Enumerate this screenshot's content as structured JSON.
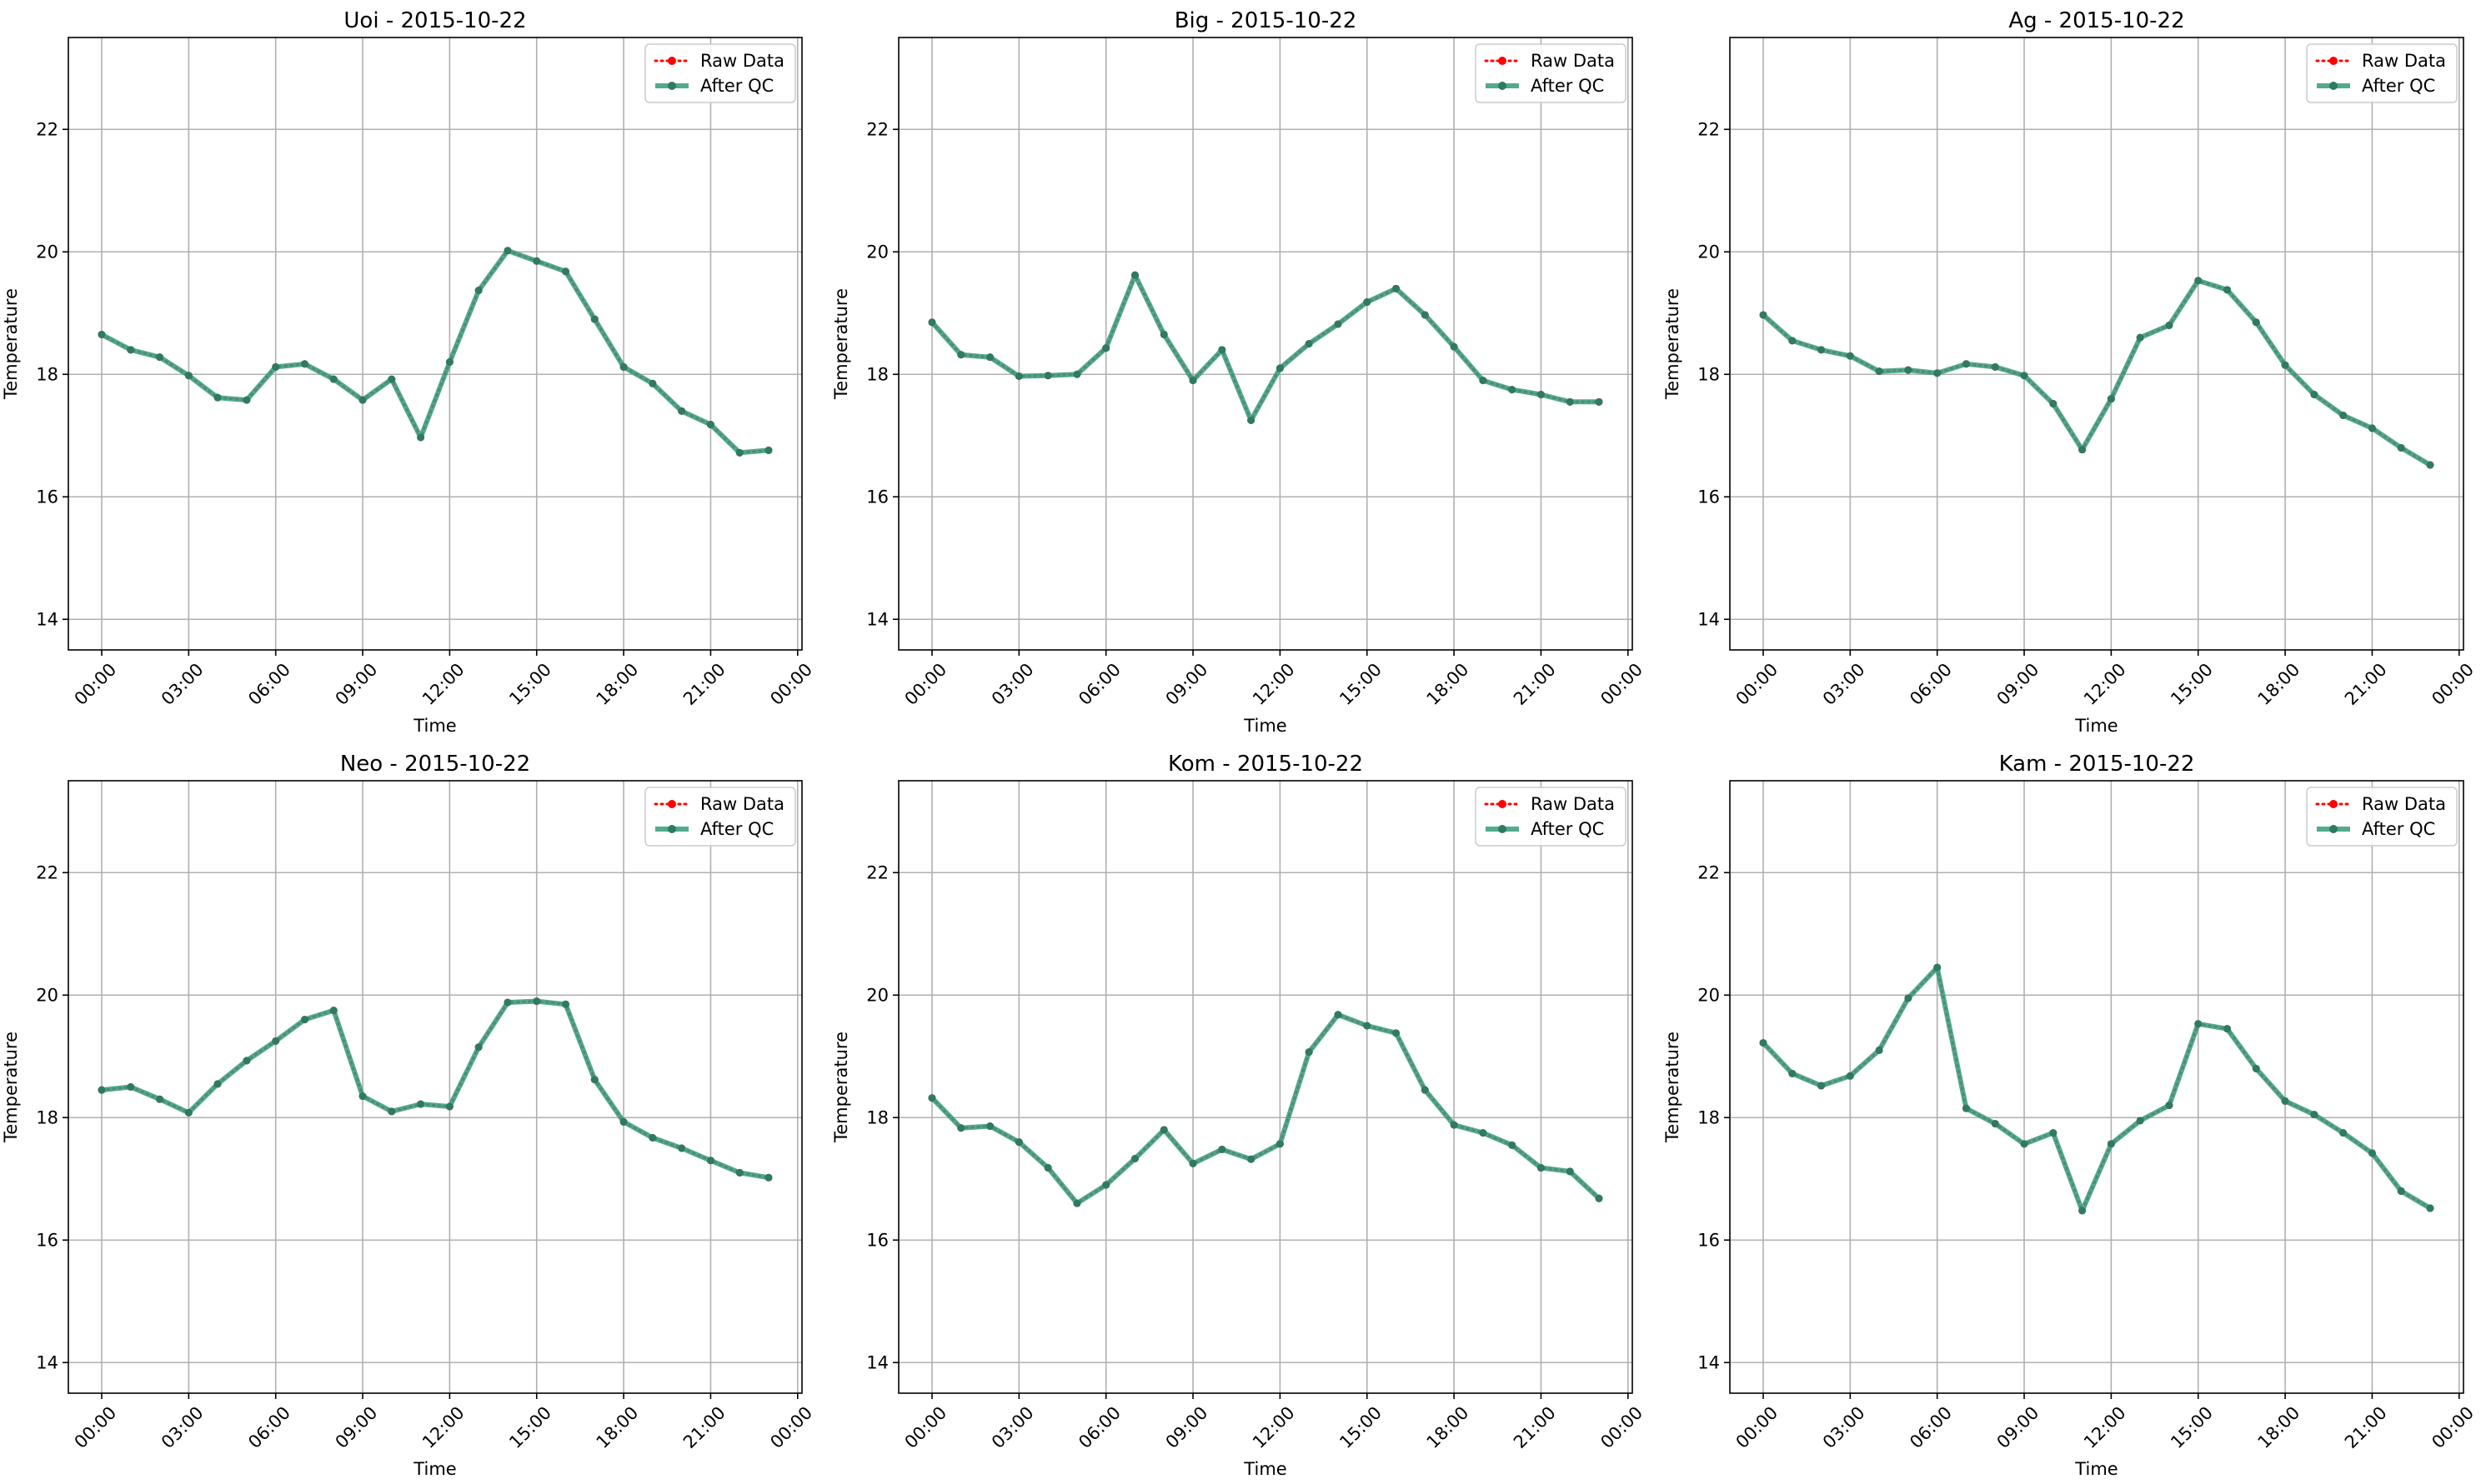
{
  "colors": {
    "raw": "#ff0000",
    "qc": "#3a9e80",
    "qc_marker": "#2e7a63",
    "grid": "#b0b0b0",
    "axis": "#000000"
  },
  "chart_data": [
    {
      "type": "line",
      "title": "Uoi - 2015-10-22",
      "xlabel": "Time",
      "ylabel": "Temperature",
      "x_unit": "hour",
      "x_tick_values": [
        0,
        3,
        6,
        9,
        12,
        15,
        18,
        21,
        24
      ],
      "x_tick_labels": [
        "00:00",
        "03:00",
        "06:00",
        "09:00",
        "12:00",
        "15:00",
        "18:00",
        "21:00",
        "00:00"
      ],
      "y_ticks": [
        14,
        16,
        18,
        20,
        22
      ],
      "ylim": [
        13.5,
        23.5
      ],
      "xlim": [
        -1.15,
        24.15
      ],
      "grid": true,
      "legend": {
        "placement": "top-right",
        "entries": [
          "Raw Data",
          "After QC"
        ]
      },
      "x": [
        0,
        1,
        2,
        3,
        4,
        5,
        6,
        7,
        8,
        9,
        10,
        11,
        12,
        13,
        14,
        15,
        16,
        17,
        18,
        19,
        20,
        21,
        22,
        23
      ],
      "series": [
        {
          "name": "Raw Data",
          "style": "dotted-red-markers",
          "values": [
            18.65,
            18.4,
            18.28,
            17.98,
            17.62,
            17.58,
            18.12,
            18.17,
            17.92,
            17.58,
            17.92,
            16.97,
            18.2,
            19.37,
            20.02,
            19.85,
            19.68,
            18.9,
            18.12,
            17.85,
            17.4,
            17.18,
            16.72,
            16.76
          ]
        },
        {
          "name": "After QC",
          "style": "solid-green-markers",
          "values": [
            18.65,
            18.4,
            18.28,
            17.98,
            17.62,
            17.58,
            18.12,
            18.17,
            17.92,
            17.58,
            17.92,
            16.97,
            18.2,
            19.37,
            20.02,
            19.85,
            19.68,
            18.9,
            18.12,
            17.85,
            17.4,
            17.18,
            16.72,
            16.76
          ]
        }
      ]
    },
    {
      "type": "line",
      "title": "Big - 2015-10-22",
      "xlabel": "Time",
      "ylabel": "Temperature",
      "x_unit": "hour",
      "x_tick_values": [
        0,
        3,
        6,
        9,
        12,
        15,
        18,
        21,
        24
      ],
      "x_tick_labels": [
        "00:00",
        "03:00",
        "06:00",
        "09:00",
        "12:00",
        "15:00",
        "18:00",
        "21:00",
        "00:00"
      ],
      "y_ticks": [
        14,
        16,
        18,
        20,
        22
      ],
      "ylim": [
        13.5,
        23.5
      ],
      "xlim": [
        -1.15,
        24.15
      ],
      "grid": true,
      "legend": {
        "placement": "top-right",
        "entries": [
          "Raw Data",
          "After QC"
        ]
      },
      "x": [
        0,
        1,
        2,
        3,
        4,
        5,
        6,
        7,
        8,
        9,
        10,
        11,
        12,
        13,
        14,
        15,
        16,
        17,
        18,
        19,
        20,
        21,
        22,
        23
      ],
      "series": [
        {
          "name": "Raw Data",
          "style": "dotted-red-markers",
          "values": [
            18.85,
            18.32,
            18.28,
            17.97,
            17.98,
            18.0,
            18.43,
            19.62,
            18.65,
            17.9,
            18.4,
            17.25,
            18.1,
            18.5,
            18.82,
            19.18,
            19.4,
            18.97,
            18.45,
            17.9,
            17.75,
            17.67,
            17.55,
            17.55
          ]
        },
        {
          "name": "After QC",
          "style": "solid-green-markers",
          "values": [
            18.85,
            18.32,
            18.28,
            17.97,
            17.98,
            18.0,
            18.43,
            19.62,
            18.65,
            17.9,
            18.4,
            17.25,
            18.1,
            18.5,
            18.82,
            19.18,
            19.4,
            18.97,
            18.45,
            17.9,
            17.75,
            17.67,
            17.55,
            17.55
          ]
        }
      ]
    },
    {
      "type": "line",
      "title": "Ag - 2015-10-22",
      "xlabel": "Time",
      "ylabel": "Temperature",
      "x_unit": "hour",
      "x_tick_values": [
        0,
        3,
        6,
        9,
        12,
        15,
        18,
        21,
        24
      ],
      "x_tick_labels": [
        "00:00",
        "03:00",
        "06:00",
        "09:00",
        "12:00",
        "15:00",
        "18:00",
        "21:00",
        "00:00"
      ],
      "y_ticks": [
        14,
        16,
        18,
        20,
        22
      ],
      "ylim": [
        13.5,
        23.5
      ],
      "xlim": [
        -1.15,
        24.15
      ],
      "grid": true,
      "legend": {
        "placement": "top-right",
        "entries": [
          "Raw Data",
          "After QC"
        ]
      },
      "x": [
        0,
        1,
        2,
        3,
        4,
        5,
        6,
        7,
        8,
        9,
        10,
        11,
        12,
        13,
        14,
        15,
        16,
        17,
        18,
        19,
        20,
        21,
        22,
        23
      ],
      "series": [
        {
          "name": "Raw Data",
          "style": "dotted-red-markers",
          "values": [
            18.97,
            18.55,
            18.4,
            18.3,
            18.05,
            18.07,
            18.02,
            18.17,
            18.12,
            17.98,
            17.52,
            16.77,
            17.6,
            18.6,
            18.8,
            19.53,
            19.38,
            18.85,
            18.15,
            17.67,
            17.33,
            17.12,
            16.8,
            16.52
          ]
        },
        {
          "name": "After QC",
          "style": "solid-green-markers",
          "values": [
            18.97,
            18.55,
            18.4,
            18.3,
            18.05,
            18.07,
            18.02,
            18.17,
            18.12,
            17.98,
            17.52,
            16.77,
            17.6,
            18.6,
            18.8,
            19.53,
            19.38,
            18.85,
            18.15,
            17.67,
            17.33,
            17.12,
            16.8,
            16.52
          ]
        }
      ]
    },
    {
      "type": "line",
      "title": "Neo - 2015-10-22",
      "xlabel": "Time",
      "ylabel": "Temperature",
      "x_unit": "hour",
      "x_tick_values": [
        0,
        3,
        6,
        9,
        12,
        15,
        18,
        21,
        24
      ],
      "x_tick_labels": [
        "00:00",
        "03:00",
        "06:00",
        "09:00",
        "12:00",
        "15:00",
        "18:00",
        "21:00",
        "00:00"
      ],
      "y_ticks": [
        14,
        16,
        18,
        20,
        22
      ],
      "ylim": [
        13.5,
        23.5
      ],
      "xlim": [
        -1.15,
        24.15
      ],
      "grid": true,
      "legend": {
        "placement": "top-right",
        "entries": [
          "Raw Data",
          "After QC"
        ]
      },
      "x": [
        0,
        1,
        2,
        3,
        4,
        5,
        6,
        7,
        8,
        9,
        10,
        11,
        12,
        13,
        14,
        15,
        16,
        17,
        18,
        19,
        20,
        21,
        22,
        23
      ],
      "series": [
        {
          "name": "Raw Data",
          "style": "dotted-red-markers",
          "values": [
            18.45,
            18.5,
            18.3,
            18.08,
            18.55,
            18.93,
            19.25,
            19.6,
            19.75,
            18.35,
            18.1,
            18.22,
            18.18,
            19.15,
            19.88,
            19.9,
            19.85,
            18.62,
            17.93,
            17.67,
            17.5,
            17.3,
            17.1,
            17.02
          ]
        },
        {
          "name": "After QC",
          "style": "solid-green-markers",
          "values": [
            18.45,
            18.5,
            18.3,
            18.08,
            18.55,
            18.93,
            19.25,
            19.6,
            19.75,
            18.35,
            18.1,
            18.22,
            18.18,
            19.15,
            19.88,
            19.9,
            19.85,
            18.62,
            17.93,
            17.67,
            17.5,
            17.3,
            17.1,
            17.02
          ]
        }
      ]
    },
    {
      "type": "line",
      "title": "Kom - 2015-10-22",
      "xlabel": "Time",
      "ylabel": "Temperature",
      "x_unit": "hour",
      "x_tick_values": [
        0,
        3,
        6,
        9,
        12,
        15,
        18,
        21,
        24
      ],
      "x_tick_labels": [
        "00:00",
        "03:00",
        "06:00",
        "09:00",
        "12:00",
        "15:00",
        "18:00",
        "21:00",
        "00:00"
      ],
      "y_ticks": [
        14,
        16,
        18,
        20,
        22
      ],
      "ylim": [
        13.5,
        23.5
      ],
      "xlim": [
        -1.15,
        24.15
      ],
      "grid": true,
      "legend": {
        "placement": "top-right",
        "entries": [
          "Raw Data",
          "After QC"
        ]
      },
      "x": [
        0,
        1,
        2,
        3,
        4,
        5,
        6,
        7,
        8,
        9,
        10,
        11,
        12,
        13,
        14,
        15,
        16,
        17,
        18,
        19,
        20,
        21,
        22,
        23
      ],
      "series": [
        {
          "name": "Raw Data",
          "style": "dotted-red-markers",
          "values": [
            18.32,
            17.83,
            17.86,
            17.6,
            17.18,
            16.6,
            16.9,
            17.33,
            17.8,
            17.25,
            17.48,
            17.32,
            17.57,
            19.07,
            19.68,
            19.5,
            19.38,
            18.45,
            17.88,
            17.75,
            17.55,
            17.18,
            17.12,
            16.68
          ]
        },
        {
          "name": "After QC",
          "style": "solid-green-markers",
          "values": [
            18.32,
            17.83,
            17.86,
            17.6,
            17.18,
            16.6,
            16.9,
            17.33,
            17.8,
            17.25,
            17.48,
            17.32,
            17.57,
            19.07,
            19.68,
            19.5,
            19.38,
            18.45,
            17.88,
            17.75,
            17.55,
            17.18,
            17.12,
            16.68
          ]
        }
      ]
    },
    {
      "type": "line",
      "title": "Kam - 2015-10-22",
      "xlabel": "Time",
      "ylabel": "Temperature",
      "x_unit": "hour",
      "x_tick_values": [
        0,
        3,
        6,
        9,
        12,
        15,
        18,
        21,
        24
      ],
      "x_tick_labels": [
        "00:00",
        "03:00",
        "06:00",
        "09:00",
        "12:00",
        "15:00",
        "18:00",
        "21:00",
        "00:00"
      ],
      "y_ticks": [
        14,
        16,
        18,
        20,
        22
      ],
      "ylim": [
        13.5,
        23.5
      ],
      "xlim": [
        -1.15,
        24.15
      ],
      "grid": true,
      "legend": {
        "placement": "top-right",
        "entries": [
          "Raw Data",
          "After QC"
        ]
      },
      "x": [
        0,
        1,
        2,
        3,
        4,
        5,
        6,
        7,
        8,
        9,
        10,
        11,
        12,
        13,
        14,
        15,
        16,
        17,
        18,
        19,
        20,
        21,
        22,
        23
      ],
      "series": [
        {
          "name": "Raw Data",
          "style": "dotted-red-markers",
          "values": [
            19.22,
            18.72,
            18.52,
            18.68,
            19.1,
            19.95,
            20.45,
            18.15,
            17.9,
            17.57,
            17.75,
            16.48,
            17.57,
            17.95,
            18.2,
            19.53,
            19.45,
            18.8,
            18.27,
            18.05,
            17.75,
            17.42,
            16.8,
            16.52
          ]
        },
        {
          "name": "After QC",
          "style": "solid-green-markers",
          "values": [
            19.22,
            18.72,
            18.52,
            18.68,
            19.1,
            19.95,
            20.45,
            18.15,
            17.9,
            17.57,
            17.75,
            16.48,
            17.57,
            17.95,
            18.2,
            19.53,
            19.45,
            18.8,
            18.27,
            18.05,
            17.75,
            17.42,
            16.8,
            16.52
          ]
        }
      ]
    }
  ]
}
